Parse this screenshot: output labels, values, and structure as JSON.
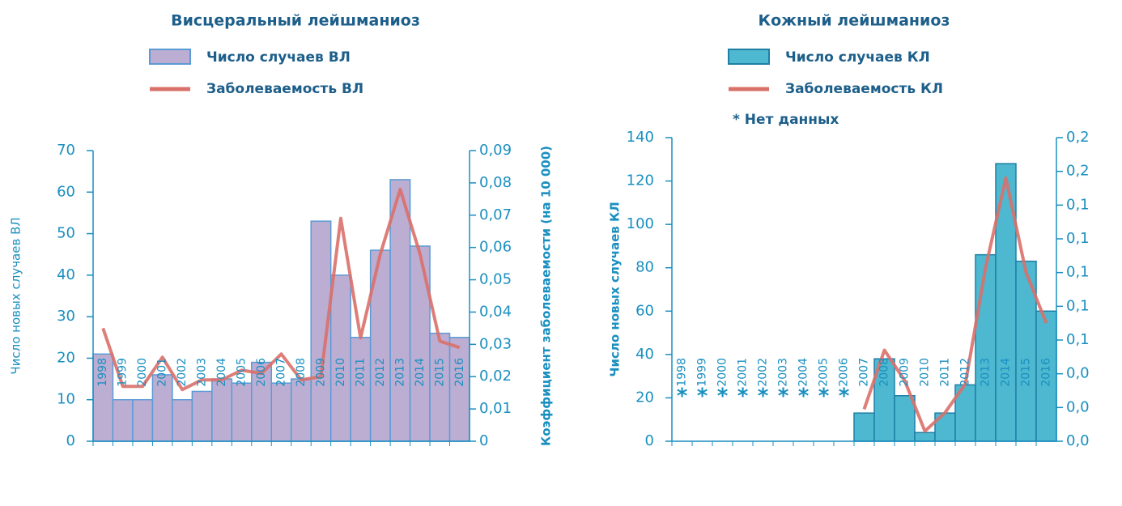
{
  "chart_data": [
    {
      "type": "bar",
      "title": "Висцеральный лейшманиоз",
      "y_label": "Число новых случаев ВЛ",
      "y2_label": "Коэффициент заболеваемости (на 10 000)",
      "categories": [
        "1998",
        "1999",
        "2000",
        "2001",
        "2002",
        "2003",
        "2004",
        "2005",
        "2006",
        "2007",
        "2008",
        "2009",
        "2010",
        "2011",
        "2012",
        "2013",
        "2014",
        "2015",
        "2016"
      ],
      "series": [
        {
          "name": "Число случаев ВЛ",
          "color": "#bcaed3",
          "values": [
            21,
            10,
            10,
            16,
            10,
            12,
            15,
            14,
            19,
            14,
            15,
            53,
            40,
            25,
            46,
            63,
            47,
            26,
            25
          ]
        },
        {
          "name": "Заболеваемость ВЛ",
          "color": "#d9706a",
          "axis": "y2",
          "values": [
            0.035,
            0.017,
            0.017,
            0.026,
            0.016,
            0.019,
            0.019,
            0.022,
            0.021,
            0.027,
            0.019,
            0.02,
            0.069,
            0.032,
            0.058,
            0.078,
            0.058,
            0.031,
            0.029
          ]
        }
      ],
      "ylim": [
        0,
        70
      ],
      "yticks": [
        0,
        10,
        20,
        30,
        40,
        50,
        60,
        70
      ],
      "y2lim": [
        0,
        0.09
      ],
      "y2ticks": [
        0,
        {
          "value": 0.01,
          "label": "0,01"
        },
        {
          "value": 0.02,
          "label": "0,02"
        },
        {
          "value": 0.03,
          "label": "0,03"
        },
        {
          "value": 0.04,
          "label": "0,04"
        },
        {
          "value": 0.05,
          "label": "0,05"
        },
        {
          "value": 0.06,
          "label": "0,06"
        },
        {
          "value": 0.07,
          "label": "0,07"
        },
        {
          "value": 0.08,
          "label": "0,08"
        },
        {
          "value": 0.09,
          "label": "0,09"
        }
      ]
    },
    {
      "type": "bar",
      "title": "Кожный лейшманиоз",
      "note": "* Нет данных",
      "no_data_marker": "*",
      "y_label": "Число новых случаев КЛ",
      "y2_label": "Коэффициент заболеваемости (на 10 000)",
      "categories": [
        "1998",
        "1999",
        "2000",
        "2001",
        "2002",
        "2003",
        "2004",
        "2005",
        "2006",
        "2007",
        "2008",
        "2009",
        "2010",
        "2011",
        "2012",
        "2013",
        "2014",
        "2015",
        "2016"
      ],
      "series": [
        {
          "name": "Число случаев КЛ",
          "color": "#4db8d0",
          "values": [
            null,
            null,
            null,
            null,
            null,
            null,
            null,
            null,
            null,
            13,
            38,
            21,
            4,
            13,
            26,
            86,
            128,
            83,
            60
          ]
        },
        {
          "name": "Заболеваемость КЛ",
          "color": "#d9706a",
          "axis": "y2",
          "values": [
            null,
            null,
            null,
            null,
            null,
            null,
            null,
            null,
            null,
            0.019,
            0.054,
            0.036,
            0.006,
            0.017,
            0.034,
            0.103,
            0.156,
            0.1,
            0.07
          ]
        }
      ],
      "ylim": [
        0,
        140
      ],
      "yticks": [
        0,
        20,
        40,
        60,
        80,
        100,
        120,
        140
      ],
      "y2lim": [
        0,
        0.18
      ],
      "y2ticks": [
        {
          "value": 0,
          "label": "0,0"
        },
        {
          "value": 0.02,
          "label": "0,0"
        },
        {
          "value": 0.04,
          "label": "0,0"
        },
        {
          "value": 0.06,
          "label": "0,1"
        },
        {
          "value": 0.08,
          "label": "0,1"
        },
        {
          "value": 0.1,
          "label": "0,1"
        },
        {
          "value": 0.12,
          "label": "0,1"
        },
        {
          "value": 0.14,
          "label": "0,1"
        },
        {
          "value": 0.16,
          "label": "0,2"
        },
        {
          "value": 0.18,
          "label": "0,2"
        }
      ]
    }
  ]
}
